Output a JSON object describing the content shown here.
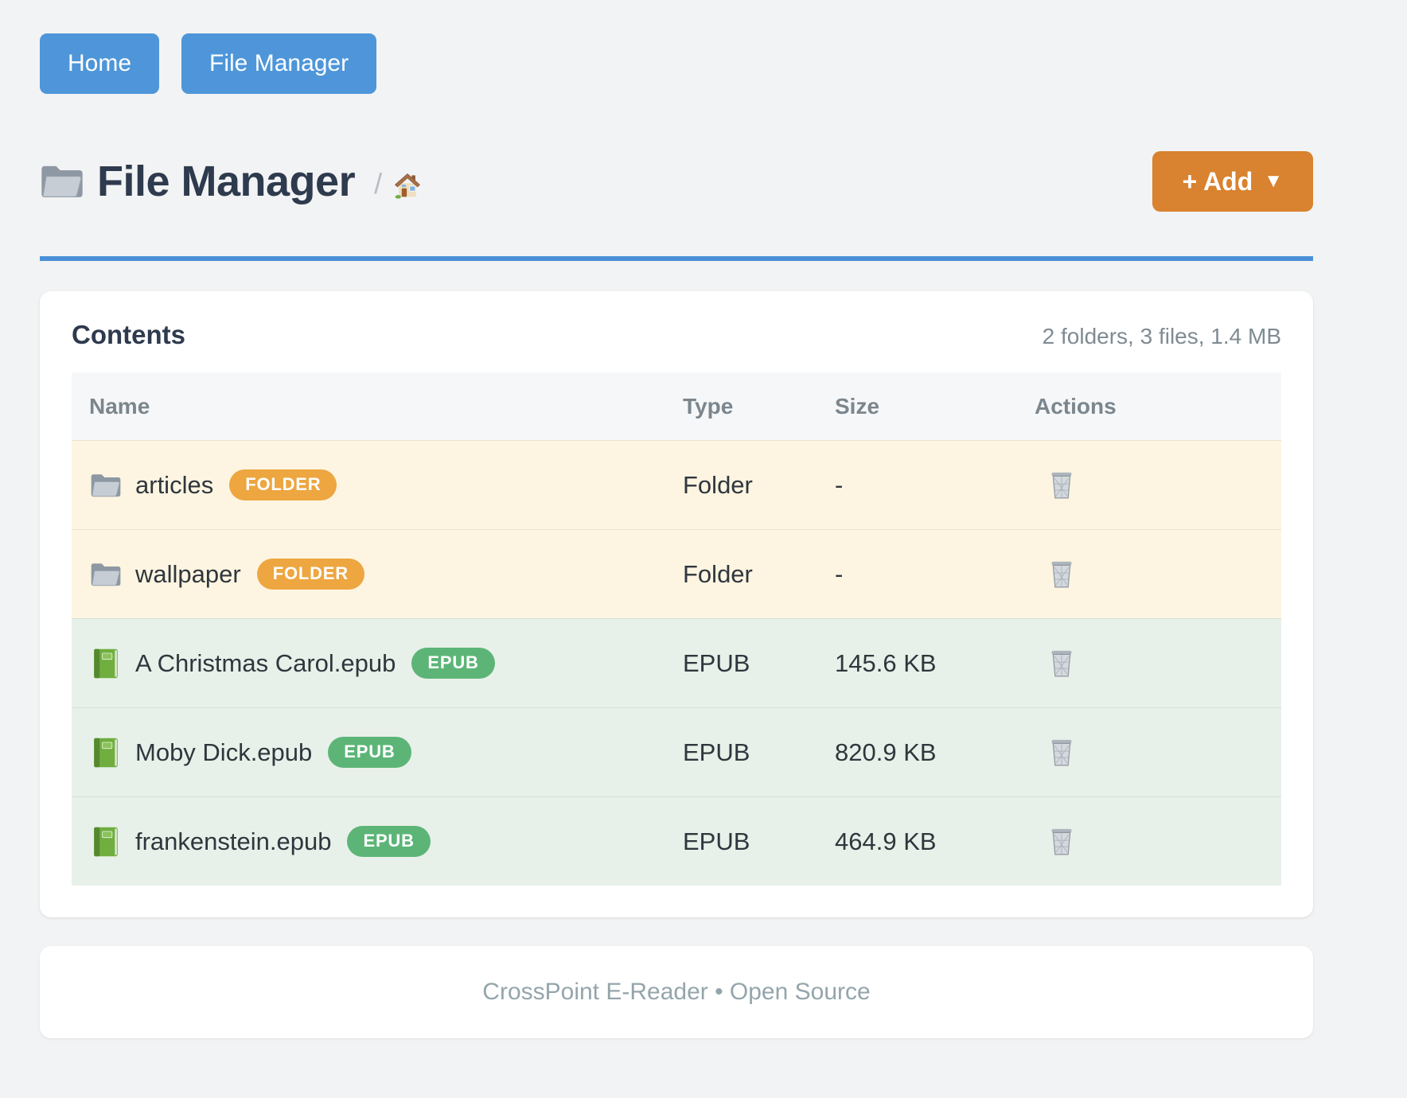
{
  "nav": {
    "home_label": "Home",
    "file_manager_label": "File Manager"
  },
  "header": {
    "title": "File Manager",
    "title_icon": "folder-icon",
    "breadcrumb_separator": "/",
    "breadcrumb_home_icon": "house-icon",
    "add_button_label": "+ Add",
    "add_button_caret": "▼"
  },
  "contents_card": {
    "title": "Contents",
    "summary": "2 folders, 3 files, 1.4 MB",
    "table": {
      "columns": [
        "Name",
        "Type",
        "Size",
        "Actions"
      ],
      "action_icon": "trash-icon",
      "rows": [
        {
          "icon": "folder-icon",
          "name": "articles",
          "badge": "FOLDER",
          "badge_style": "folder",
          "type": "Folder",
          "size": "-",
          "kind": "folder"
        },
        {
          "icon": "folder-icon",
          "name": "wallpaper",
          "badge": "FOLDER",
          "badge_style": "folder",
          "type": "Folder",
          "size": "-",
          "kind": "folder"
        },
        {
          "icon": "book-icon",
          "name": "A Christmas Carol.epub",
          "badge": "EPUB",
          "badge_style": "epub",
          "type": "EPUB",
          "size": "145.6 KB",
          "kind": "epub"
        },
        {
          "icon": "book-icon",
          "name": "Moby Dick.epub",
          "badge": "EPUB",
          "badge_style": "epub",
          "type": "EPUB",
          "size": "820.9 KB",
          "kind": "epub"
        },
        {
          "icon": "book-icon",
          "name": "frankenstein.epub",
          "badge": "EPUB",
          "badge_style": "epub",
          "type": "EPUB",
          "size": "464.9 KB",
          "kind": "epub"
        }
      ]
    }
  },
  "footer": {
    "text": "CrossPoint E-Reader • Open Source"
  },
  "colors": {
    "page_background": "#f2f3f4",
    "nav_button_blue": "#4e96d9",
    "rule_blue": "#4a90d8",
    "add_button_orange": "#d9822f",
    "folder_badge_orange": "#eda640",
    "epub_badge_green": "#5cb577",
    "folder_row_background": "#fdf5e1",
    "epub_row_background": "#e7f1e9",
    "table_header_background": "#f6f7f9",
    "heading_text": "#2e3a4d",
    "muted_text": "#7f8b92",
    "footer_text": "#94a5ab"
  }
}
